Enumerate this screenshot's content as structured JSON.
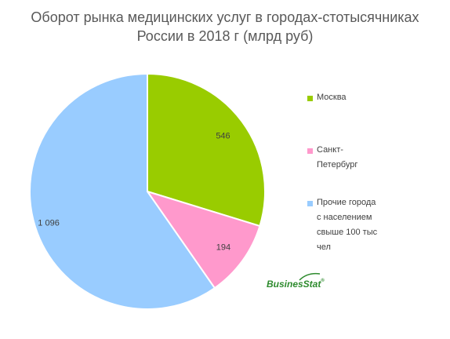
{
  "chart_data": {
    "type": "pie",
    "title_lines": [
      "Оборот рынка медицинских услуг в городах-стотысячниках",
      "России в 2018 г (млрд руб)"
    ],
    "slices": [
      {
        "label_lines": [
          "Москва"
        ],
        "value": 546,
        "display": "546",
        "color": "#99cc00"
      },
      {
        "label_lines": [
          "Санкт-",
          "Петербург"
        ],
        "value": 194,
        "display": "194",
        "color": "#ff99cc"
      },
      {
        "label_lines": [
          "Прочие города",
          "с населением",
          "свыше 100 тыс",
          "чел"
        ],
        "value": 1096,
        "display": "1 096",
        "color": "#99ccff"
      }
    ],
    "legend_position": "right"
  },
  "logo": {
    "text": "BusinesStat",
    "mark": "®"
  }
}
